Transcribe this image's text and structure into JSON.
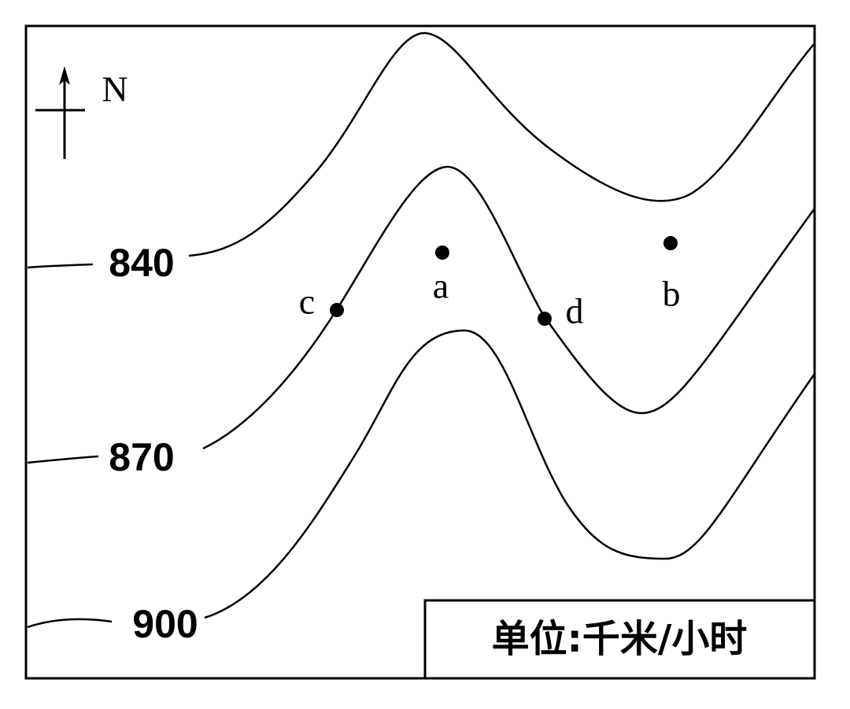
{
  "north": "N",
  "isolines": [
    {
      "label": "840"
    },
    {
      "label": "870"
    },
    {
      "label": "900"
    }
  ],
  "points": [
    {
      "label": "a"
    },
    {
      "label": "b"
    },
    {
      "label": "c"
    },
    {
      "label": "d"
    }
  ],
  "unit": "单位:千米/小时"
}
